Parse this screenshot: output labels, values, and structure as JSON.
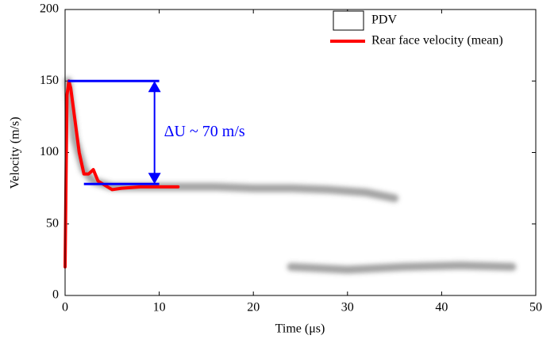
{
  "chart_data": {
    "type": "line",
    "x_label": "Time (μs)",
    "y_label": "Velocity (m/s)",
    "xlim": [
      0,
      50
    ],
    "ylim": [
      0,
      200
    ],
    "xticks": [
      0,
      10,
      20,
      30,
      40,
      50
    ],
    "yticks": [
      0,
      50,
      100,
      150,
      200
    ],
    "legend": "top right",
    "series": [
      {
        "name": "PDV",
        "color": "#555555",
        "x": [
          0.3,
          1,
          2,
          3,
          5,
          8,
          12,
          16,
          20,
          24,
          28,
          32,
          35,
          36,
          24,
          30,
          36,
          42,
          47.5
        ],
        "values": [
          150,
          110,
          88,
          80,
          76,
          76,
          76,
          76,
          75,
          75,
          74,
          72,
          68,
          null,
          20,
          18,
          20,
          21,
          20
        ]
      },
      {
        "name": "Rear face velocity (mean)",
        "color": "#ff0000",
        "x": [
          0,
          0.2,
          0.4,
          0.6,
          1,
          1.5,
          2,
          2.5,
          3,
          3.5,
          4,
          5,
          6,
          8,
          10,
          12
        ],
        "values": [
          20,
          140,
          150,
          145,
          125,
          100,
          85,
          85,
          88,
          80,
          78,
          74,
          75,
          76,
          76,
          76
        ]
      }
    ],
    "annotation": {
      "text": "ΔU ~ 70 m/s",
      "color": "#0000ff",
      "upper": 150,
      "lower": 78,
      "upper_x": [
        0.3,
        10
      ],
      "lower_x": [
        2,
        10
      ],
      "arrow_x": 9.5
    }
  }
}
